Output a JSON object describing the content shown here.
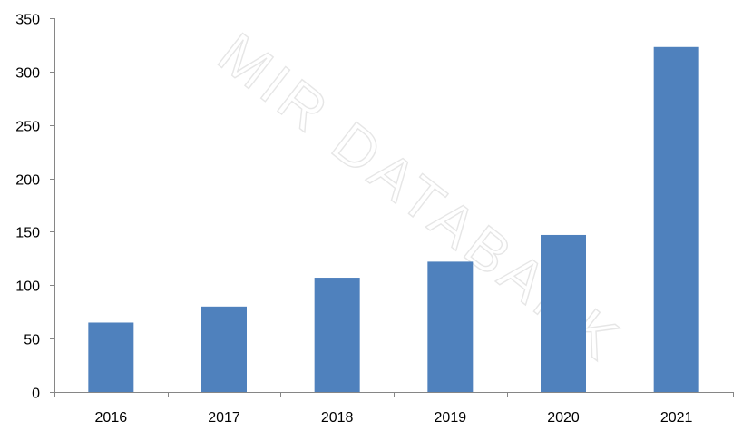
{
  "watermark_text": "MIR DATABANK",
  "chart_data": {
    "type": "bar",
    "title": "",
    "xlabel": "",
    "ylabel": "",
    "categories": [
      "2016",
      "2017",
      "2018",
      "2019",
      "2020",
      "2021"
    ],
    "values": [
      65,
      80,
      107,
      122,
      147,
      323
    ],
    "ylim": [
      0,
      350
    ],
    "yticks": [
      0,
      50,
      100,
      150,
      200,
      250,
      300,
      350
    ],
    "grid": false,
    "legend": "none",
    "bar_color": "#4f81bd",
    "axis_color": "#868686"
  }
}
